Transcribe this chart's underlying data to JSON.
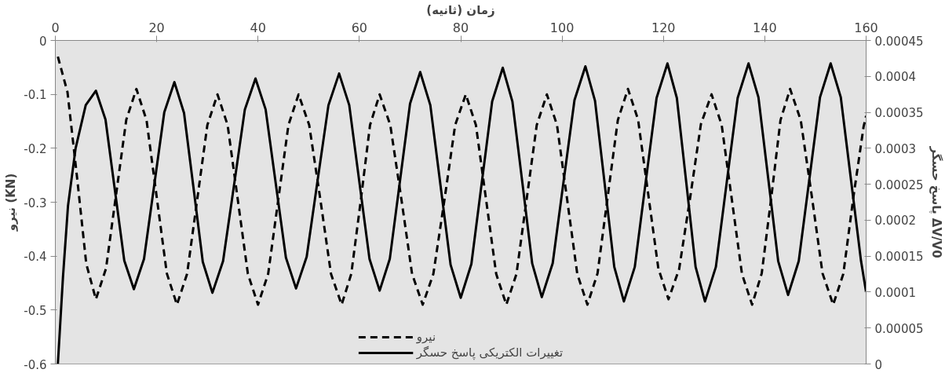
{
  "chart_data": {
    "type": "line",
    "xlabel": "زمان (ثانیه)",
    "ylabel": "نیرو (KN)",
    "y2label": "پاسخ حسگر ΔV/V0",
    "xlim": [
      0,
      160
    ],
    "xticks": [
      0,
      20,
      40,
      60,
      80,
      100,
      120,
      140,
      160
    ],
    "ylim": [
      -0.6,
      0
    ],
    "yticks": [
      -0.6,
      -0.5,
      -0.4,
      -0.3,
      -0.2,
      -0.1,
      0
    ],
    "y2lim": [
      0,
      0.00045
    ],
    "y2ticks": [
      0,
      {
        "value": 5e-05,
        "label": "0.00005"
      },
      0.0001,
      0.00015,
      0.0002,
      0.00025,
      0.0003,
      0.00035,
      0.0004,
      0.00045
    ],
    "legend": "bottom",
    "series": [
      {
        "name": "نیرو",
        "color": "#000000",
        "line_style": "dashed",
        "x": [
          0.5,
          2.4,
          4.3,
          6.1,
          8,
          10,
          12,
          14,
          16,
          18,
          20,
          22,
          24,
          26,
          28,
          30,
          32,
          34,
          36,
          38,
          40,
          42,
          44,
          46,
          48,
          50.1,
          52.3,
          54.4,
          56.5,
          58.4,
          60.3,
          62.1,
          64,
          66.1,
          68.3,
          70.4,
          72.5,
          74.6,
          76.8,
          78.9,
          81,
          83,
          85,
          87,
          89,
          91,
          93,
          95,
          97,
          99,
          101,
          103,
          105,
          107,
          109,
          111,
          113,
          115,
          117,
          119,
          121,
          123.1,
          125.3,
          127.4,
          129.5,
          131.5,
          133.5,
          135.5,
          137.5,
          139.4,
          141.3,
          143.1,
          145,
          147.1,
          149.3,
          151.4,
          153.5,
          155.5,
          157.5,
          159.5,
          160
        ],
        "values": [
          -0.03,
          -0.096,
          -0.255,
          -0.414,
          -0.48,
          -0.423,
          -0.285,
          -0.147,
          -0.09,
          -0.148,
          -0.29,
          -0.432,
          -0.49,
          -0.433,
          -0.295,
          -0.157,
          -0.1,
          -0.157,
          -0.295,
          -0.433,
          -0.49,
          -0.433,
          -0.295,
          -0.157,
          -0.1,
          -0.157,
          -0.295,
          -0.433,
          -0.49,
          -0.433,
          -0.295,
          -0.157,
          -0.1,
          -0.157,
          -0.295,
          -0.433,
          -0.49,
          -0.433,
          -0.295,
          -0.157,
          -0.1,
          -0.157,
          -0.295,
          -0.433,
          -0.49,
          -0.433,
          -0.295,
          -0.157,
          -0.1,
          -0.157,
          -0.295,
          -0.433,
          -0.49,
          -0.432,
          -0.29,
          -0.148,
          -0.09,
          -0.147,
          -0.285,
          -0.423,
          -0.48,
          -0.424,
          -0.29,
          -0.155,
          -0.1,
          -0.157,
          -0.295,
          -0.433,
          -0.49,
          -0.432,
          -0.29,
          -0.148,
          -0.09,
          -0.148,
          -0.29,
          -0.432,
          -0.49,
          -0.433,
          -0.29,
          -0.16,
          -0.14
        ]
      },
      {
        "name": "تغییرات الکتریکی پاسخ حسگر",
        "color": "#000000",
        "line_style": "solid",
        "axis": "y2",
        "x": [
          0.5,
          1.5,
          2.5,
          4,
          6,
          8,
          9.9,
          11.75,
          13.6,
          15.5,
          17.5,
          19.5,
          21.5,
          23.5,
          25.4,
          27.25,
          29.1,
          31,
          33.1,
          35.25,
          37.4,
          39.5,
          41.5,
          43.5,
          45.5,
          47.5,
          49.6,
          51.75,
          53.9,
          56,
          58,
          60,
          62,
          64,
          66,
          68,
          70,
          72,
          74,
          76,
          78,
          80,
          82.1,
          84.15,
          86.2,
          88.3,
          90.2,
          92.15,
          94.1,
          96,
          98.15,
          100.3,
          102.45,
          104.6,
          106.5,
          108.4,
          110.3,
          112.2,
          114.35,
          116.5,
          118.65,
          120.8,
          122.65,
          124.5,
          126.35,
          128.2,
          130.35,
          132.5,
          134.65,
          136.8,
          138.75,
          140.7,
          142.65,
          144.6,
          146.7,
          148.8,
          150.9,
          153,
          155,
          157,
          159,
          160
        ],
        "values": [
          0,
          0.00012,
          0.00022,
          0.0003,
          0.00036,
          0.00038,
          0.00034,
          0.000242,
          0.000144,
          0.000104,
          0.000146,
          0.000248,
          0.00035,
          0.000392,
          0.000349,
          0.000246,
          0.000142,
          9.9e-05,
          0.000143,
          0.000248,
          0.000354,
          0.000397,
          0.000354,
          0.000251,
          0.000148,
          0.000105,
          0.000149,
          0.000255,
          0.00036,
          0.000404,
          0.00036,
          0.000253,
          0.000146,
          0.000102,
          0.000146,
          0.000254,
          0.000362,
          0.000406,
          0.00036,
          0.000249,
          0.000138,
          9.2e-05,
          0.000139,
          0.000252,
          0.000365,
          0.000412,
          0.000365,
          0.000253,
          0.00014,
          9.3e-05,
          0.00014,
          0.000254,
          0.000367,
          0.000414,
          0.000366,
          0.000251,
          0.000135,
          8.7e-05,
          0.000135,
          0.000253,
          0.00037,
          0.000418,
          0.00037,
          0.000253,
          0.000135,
          8.7e-05,
          0.000135,
          0.000253,
          0.00037,
          0.000418,
          0.000371,
          0.000257,
          0.000143,
          9.6e-05,
          0.000143,
          0.000257,
          0.000371,
          0.000418,
          0.000371,
          0.000257,
          0.000143,
          0.0001
        ]
      }
    ]
  }
}
